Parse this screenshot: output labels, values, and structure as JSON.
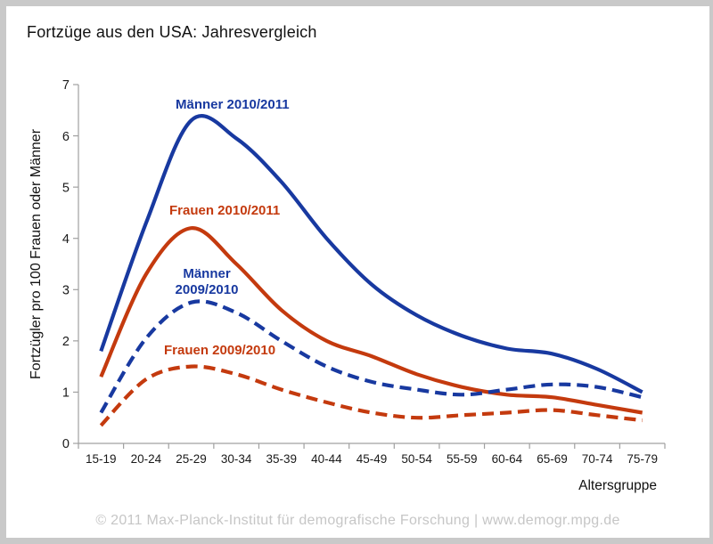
{
  "title": "Fortzüge aus den USA: Jahresvergleich",
  "footer_text": "© 2011 Max-Planck-Institut für demografische Forschung | www.demogr.mpg.de",
  "labels": {
    "maenner_2010": "Männer 2010/2011",
    "frauen_2010": "Frauen 2010/2011",
    "maenner_2009_line1": "Männer",
    "maenner_2009_line2": "2009/2010",
    "frauen_2009": "Frauen 2009/2010"
  },
  "colors": {
    "blue_line": "#1839A0",
    "red_line": "#C43A0E",
    "axis": "#a0a0a0",
    "tick_text": "#1a1a1a",
    "footer_gray": "#c6c6c6",
    "frame_gray": "#c9c9c9"
  },
  "chart_data": {
    "type": "line",
    "title": "Fortzüge aus den USA: Jahresvergleich",
    "xlabel": "Altersgruppe",
    "ylabel": "Fortzügler pro 100 Frauen oder Männer",
    "categories": [
      "15-19",
      "20-24",
      "25-29",
      "30-34",
      "35-39",
      "40-44",
      "45-49",
      "50-54",
      "55-59",
      "60-64",
      "65-69",
      "70-74",
      "75-79"
    ],
    "ylim": [
      0,
      7
    ],
    "yticks": [
      0,
      1,
      2,
      3,
      4,
      5,
      6,
      7
    ],
    "grid": false,
    "legend_position": "inline-annotations",
    "line_smoothing": true,
    "series": [
      {
        "name": "Männer 2010/2011",
        "style": "solid",
        "color": "#1839A0",
        "values": [
          1.8,
          4.3,
          6.3,
          5.95,
          5.1,
          4.0,
          3.1,
          2.5,
          2.1,
          1.85,
          1.75,
          1.45,
          1.0
        ]
      },
      {
        "name": "Frauen 2010/2011",
        "style": "solid",
        "color": "#C43A0E",
        "values": [
          1.3,
          3.3,
          4.2,
          3.5,
          2.6,
          2.0,
          1.7,
          1.35,
          1.1,
          0.95,
          0.9,
          0.75,
          0.6
        ]
      },
      {
        "name": "Männer 2009/2010",
        "style": "dashed",
        "color": "#1839A0",
        "values": [
          0.6,
          2.05,
          2.75,
          2.55,
          2.0,
          1.5,
          1.2,
          1.05,
          0.95,
          1.05,
          1.15,
          1.1,
          0.9
        ]
      },
      {
        "name": "Frauen 2009/2010",
        "style": "dashed",
        "color": "#C43A0E",
        "values": [
          0.35,
          1.25,
          1.5,
          1.35,
          1.05,
          0.8,
          0.6,
          0.5,
          0.55,
          0.6,
          0.65,
          0.55,
          0.45
        ]
      }
    ]
  }
}
